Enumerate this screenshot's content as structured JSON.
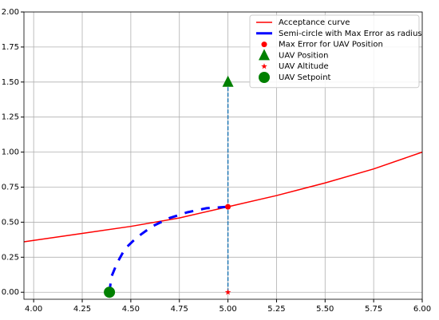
{
  "chart_data": {
    "type": "line",
    "xlim": [
      3.95,
      6.0
    ],
    "ylim": [
      -0.05,
      2.0
    ],
    "xticks": [
      {
        "value": 4.0,
        "label": "4.00"
      },
      {
        "value": 4.25,
        "label": "4.25"
      },
      {
        "value": 4.5,
        "label": "4.50"
      },
      {
        "value": 4.75,
        "label": "4.75"
      },
      {
        "value": 5.0,
        "label": "5.00"
      },
      {
        "value": 5.25,
        "label": "5.25"
      },
      {
        "value": 5.5,
        "label": "5.50"
      },
      {
        "value": 5.75,
        "label": "5.75"
      },
      {
        "value": 6.0,
        "label": "6.00"
      }
    ],
    "yticks": [
      {
        "value": 0.0,
        "label": "0.00"
      },
      {
        "value": 0.25,
        "label": "0.25"
      },
      {
        "value": 0.5,
        "label": "0.50"
      },
      {
        "value": 0.75,
        "label": "0.75"
      },
      {
        "value": 1.0,
        "label": "1.00"
      },
      {
        "value": 1.25,
        "label": "1.25"
      },
      {
        "value": 1.5,
        "label": "1.50"
      },
      {
        "value": 1.75,
        "label": "1.75"
      },
      {
        "value": 2.0,
        "label": "2.00"
      }
    ],
    "grid": true,
    "legend": "upper right",
    "series": [
      {
        "name": "Acceptance curve",
        "kind": "line",
        "color": "#ff0000",
        "linestyle": "solid",
        "x": [
          3.95,
          4.25,
          4.5,
          4.75,
          5.0,
          5.25,
          5.5,
          5.75,
          6.0
        ],
        "values": [
          0.36,
          0.42,
          0.47,
          0.53,
          0.61,
          0.69,
          0.78,
          0.88,
          1.0
        ]
      },
      {
        "name": "Semi-circle with Max Error as radius",
        "kind": "line",
        "color": "#0000ff",
        "linestyle": "dashed",
        "thick": true,
        "x": [
          4.39,
          4.4,
          4.43,
          4.47,
          4.53,
          4.61,
          4.7,
          4.79,
          4.89,
          5.0
        ],
        "values": [
          0.0,
          0.11,
          0.21,
          0.31,
          0.39,
          0.47,
          0.53,
          0.57,
          0.6,
          0.61
        ]
      },
      {
        "kind": "line",
        "color": "#1f77b4",
        "linestyle": "dashed",
        "x": [
          5.0,
          5.0
        ],
        "values": [
          0.0,
          1.5
        ]
      },
      {
        "name": "Max Error for UAV Position",
        "kind": "scatter",
        "marker": "circle",
        "color": "#ff0000",
        "x": [
          5.0
        ],
        "values": [
          0.61
        ]
      },
      {
        "name": "UAV Position",
        "kind": "scatter",
        "marker": "triangle",
        "color": "#008000",
        "x": [
          5.0
        ],
        "values": [
          1.5
        ]
      },
      {
        "name": "UAV Altitude",
        "kind": "scatter",
        "marker": "star",
        "color": "#ff0000",
        "x": [
          5.0
        ],
        "values": [
          0.0
        ]
      },
      {
        "name": "UAV Setpoint",
        "kind": "scatter",
        "marker": "bigcircle",
        "color": "#008000",
        "x": [
          4.39
        ],
        "values": [
          0.0
        ]
      }
    ]
  }
}
